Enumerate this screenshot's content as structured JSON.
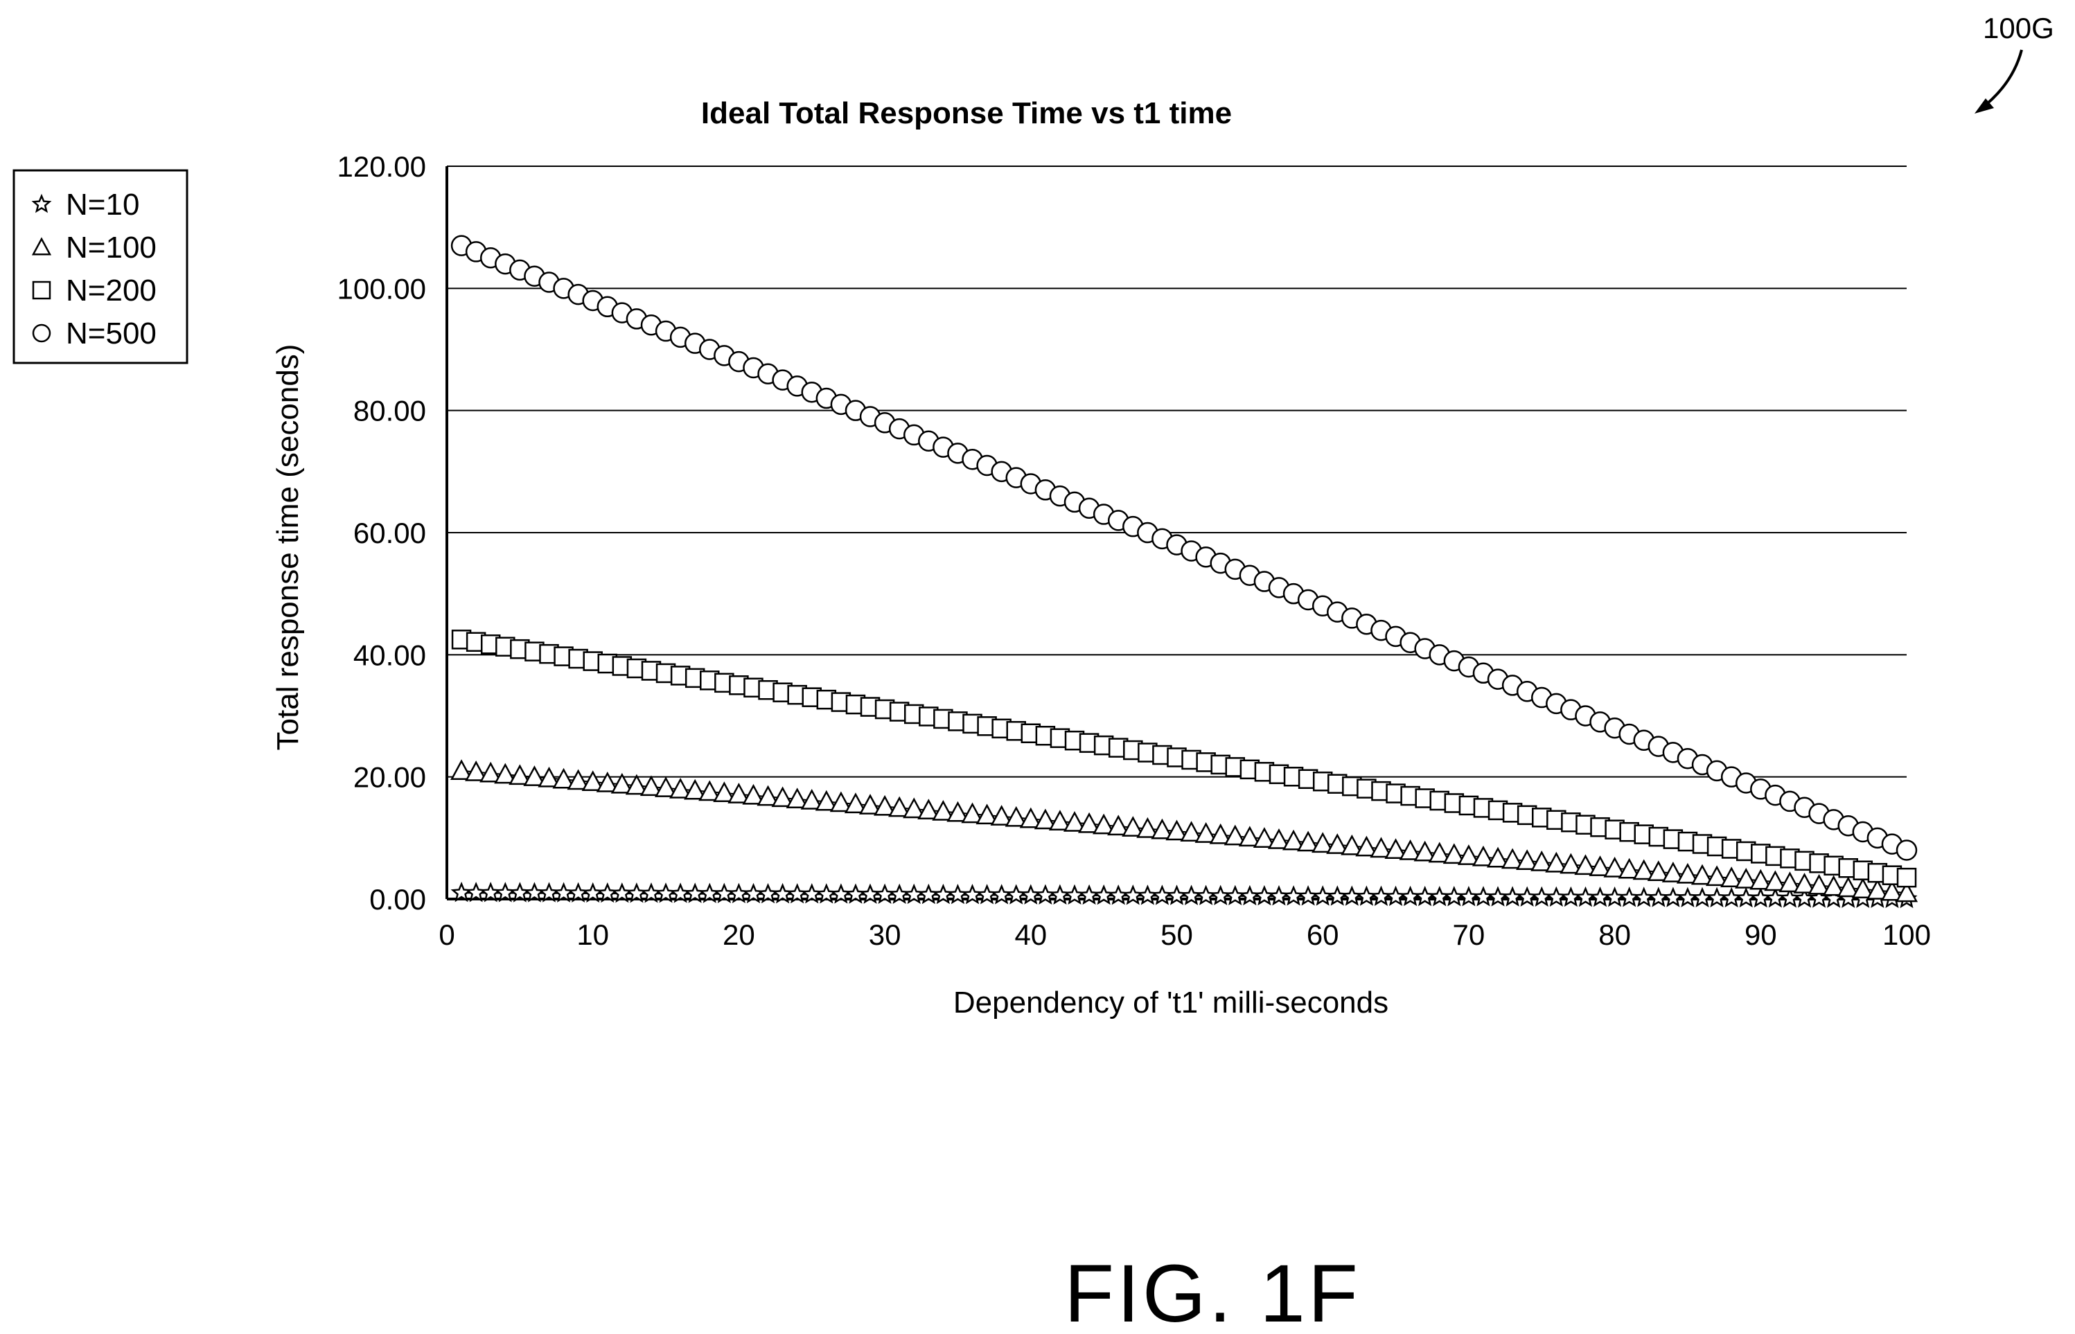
{
  "figure": {
    "reference_label": "100G",
    "caption": "FIG. 1F"
  },
  "chart_data": {
    "type": "scatter",
    "title": "Ideal Total Response Time vs t1 time",
    "xlabel": "Dependency of 't1' milli-seconds",
    "ylabel": "Total response time (seconds)",
    "xlim": [
      0,
      100
    ],
    "ylim": [
      0,
      120
    ],
    "x_ticks": [
      "0",
      "10",
      "20",
      "30",
      "40",
      "50",
      "60",
      "70",
      "80",
      "90",
      "100"
    ],
    "y_ticks": [
      "0.00",
      "20.00",
      "40.00",
      "60.00",
      "80.00",
      "100.00",
      "120.00"
    ],
    "grid": "horizontal",
    "legend_position": "left",
    "x": {
      "start": 1,
      "end": 100,
      "step": 1
    },
    "series": [
      {
        "name": "N=10",
        "marker": "star",
        "start_value": 1.0,
        "end_value": 0.0
      },
      {
        "name": "N=100",
        "marker": "triangle",
        "start_value": 21.0,
        "end_value": 1.0
      },
      {
        "name": "N=200",
        "marker": "square",
        "start_value": 42.5,
        "end_value": 3.5
      },
      {
        "name": "N=500",
        "marker": "circle",
        "start_value": 107.0,
        "end_value": 8.0
      }
    ]
  }
}
